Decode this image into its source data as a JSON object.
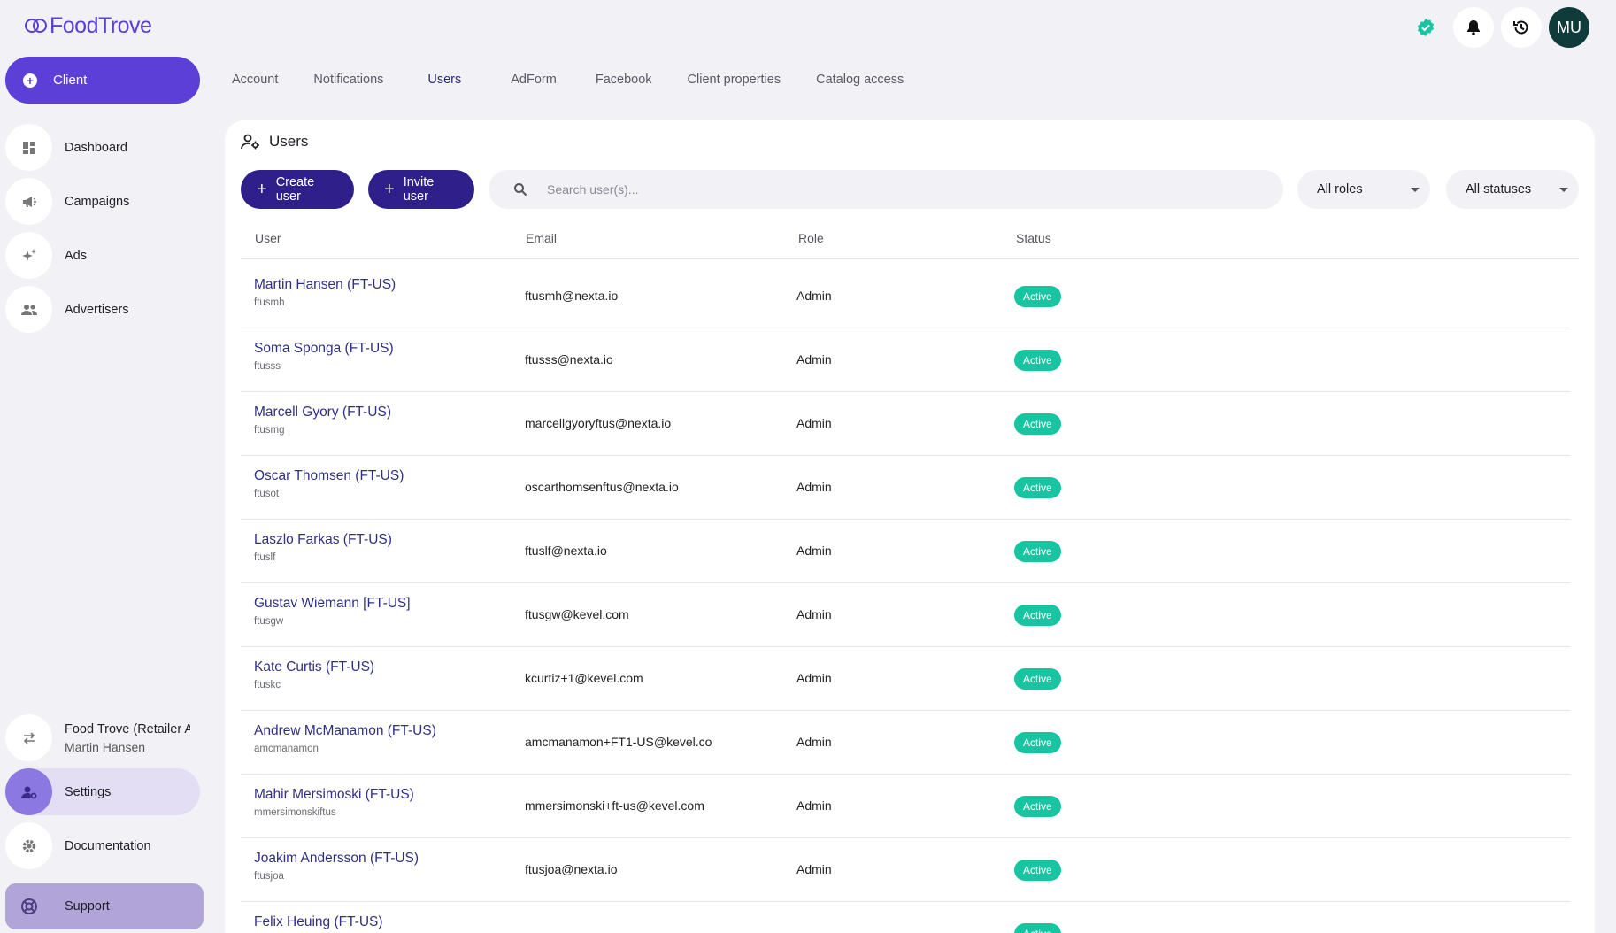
{
  "app": {
    "logo_text": "FoodTrove"
  },
  "header": {
    "avatar_initials": "MU"
  },
  "sidebar": {
    "client_label": "Client",
    "nav": [
      {
        "label": "Dashboard"
      },
      {
        "label": "Campaigns"
      },
      {
        "label": "Ads"
      },
      {
        "label": "Advertisers"
      }
    ],
    "account": {
      "name": "Food Trove (Retailer Ac",
      "user": "Martin Hansen"
    },
    "settings_label": "Settings",
    "documentation_label": "Documentation",
    "support_label": "Support"
  },
  "tabs": [
    {
      "label": "Account"
    },
    {
      "label": "Notifications"
    },
    {
      "label": "Users",
      "active": true
    },
    {
      "label": "AdForm"
    },
    {
      "label": "Facebook"
    },
    {
      "label": "Client properties"
    },
    {
      "label": "Catalog access"
    }
  ],
  "users_panel": {
    "title": "Users",
    "create_label": "Create user",
    "invite_label": "Invite user",
    "search_placeholder": "Search user(s)...",
    "roles_filter": "All roles",
    "status_filter": "All statuses",
    "columns": {
      "user": "User",
      "email": "Email",
      "role": "Role",
      "status": "Status"
    },
    "rows": [
      {
        "name": "Martin Hansen (FT-US)",
        "login": "ftusmh",
        "email": "ftusmh@nexta.io",
        "role": "Admin",
        "status": "Active"
      },
      {
        "name": "Soma Sponga (FT-US)",
        "login": "ftusss",
        "email": "ftusss@nexta.io",
        "role": "Admin",
        "status": "Active"
      },
      {
        "name": "Marcell Gyory (FT-US)",
        "login": "ftusmg",
        "email": "marcellgyoryftus@nexta.io",
        "role": "Admin",
        "status": "Active"
      },
      {
        "name": "Oscar Thomsen (FT-US)",
        "login": "ftusot",
        "email": "oscarthomsenftus@nexta.io",
        "role": "Admin",
        "status": "Active"
      },
      {
        "name": "Laszlo Farkas (FT-US)",
        "login": "ftuslf",
        "email": "ftuslf@nexta.io",
        "role": "Admin",
        "status": "Active"
      },
      {
        "name": "Gustav Wiemann [FT-US]",
        "login": "ftusgw",
        "email": "ftusgw@kevel.com",
        "role": "Admin",
        "status": "Active"
      },
      {
        "name": "Kate Curtis (FT-US)",
        "login": "ftuskc",
        "email": "kcurtiz+1@kevel.com",
        "role": "Admin",
        "status": "Active"
      },
      {
        "name": "Andrew McManamon (FT-US)",
        "login": "amcmanamon",
        "email": "amcmanamon+FT1-US@kevel.co",
        "role": "Admin",
        "status": "Active"
      },
      {
        "name": "Mahir Mersimoski (FT-US)",
        "login": "mmersimonskiftus",
        "email": "mmersimonski+ft-us@kevel.com",
        "role": "Admin",
        "status": "Active"
      },
      {
        "name": "Joakim Andersson (FT-US)",
        "login": "ftusjoa",
        "email": "ftusjoa@nexta.io",
        "role": "Admin",
        "status": "Active"
      },
      {
        "name": "Felix Heuing (FT-US)",
        "login": "",
        "email": "",
        "role": "",
        "status": "Active"
      }
    ]
  },
  "colors": {
    "accent": "#5b3fd6",
    "primary_dark": "#2f1f8a",
    "active_badge": "#17c6a0",
    "verified": "#17c6a0"
  }
}
